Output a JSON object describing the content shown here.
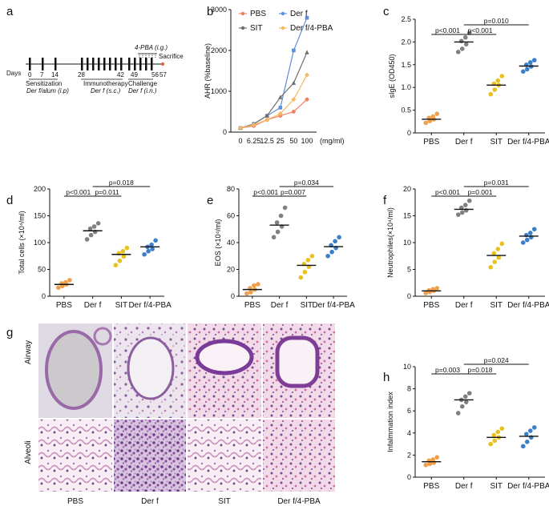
{
  "panels": {
    "a": {
      "letter": "a",
      "days_label": "Days",
      "day_ticks": [
        "0",
        "7",
        "14",
        "28",
        "42",
        "49",
        "56",
        "57"
      ],
      "treatment_label": "4-PBA (i.g.)",
      "sacrifice_label": "Sacrifice",
      "phases": [
        {
          "name": "Sensitization",
          "detail": "Der f/alum (i.p)"
        },
        {
          "name": "Immunotherapy",
          "detail": "Der f (s.c.)"
        },
        {
          "name": "Challenge",
          "detail": "Der f (i.n.)"
        }
      ]
    },
    "g": {
      "letter": "g",
      "row_labels": [
        "Airway",
        "Alveoli"
      ],
      "column_labels": [
        "PBS",
        "Der f",
        "SIT",
        "Der f/4-PBA"
      ]
    }
  },
  "colors": {
    "PBS": "#f0a04b",
    "Der f": "#808080",
    "SIT": "#e8c020",
    "Der f/4-PBA": "#3a7fc8",
    "AHR_PBS": "#f08060",
    "AHR_Der f": "#5b8fd8",
    "AHR_SIT": "#707070",
    "AHR_Der f/4-PBA": "#f6b860"
  },
  "chart_data": [
    {
      "id": "b",
      "letter": "b",
      "type": "line",
      "xlabel": "(mg/ml)",
      "ylabel": "AHR (%baseline)",
      "x": [
        "0",
        "6.25",
        "12.5",
        "25",
        "50",
        "100"
      ],
      "xticks": [
        "0",
        "6.25",
        "12.5",
        "25",
        "50",
        "100"
      ],
      "ylim": [
        0,
        3000
      ],
      "yticks": [
        "0",
        "1000",
        "2000",
        "3000"
      ],
      "legend": "top",
      "series": [
        {
          "name": "PBS",
          "values": [
            100,
            150,
            300,
            400,
            500,
            800
          ]
        },
        {
          "name": "Der f",
          "values": [
            100,
            200,
            400,
            600,
            2000,
            2800
          ]
        },
        {
          "name": "SIT",
          "values": [
            100,
            200,
            400,
            850,
            1200,
            1950
          ]
        },
        {
          "name": "Der f/4-PBA",
          "values": [
            100,
            180,
            300,
            450,
            800,
            1400
          ]
        }
      ]
    },
    {
      "id": "c",
      "letter": "c",
      "type": "scatter",
      "ylabel": "sIgE (OD450)",
      "categories": [
        "PBS",
        "Der f",
        "SIT",
        "Der f/4-PBA"
      ],
      "ylim": [
        0,
        2.5
      ],
      "yticks": [
        "0",
        "0.5",
        "1.0",
        "1.5",
        "2.0",
        "2.5"
      ],
      "means": [
        0.3,
        2.0,
        1.05,
        1.47
      ],
      "points": [
        [
          0.22,
          0.26,
          0.3,
          0.33,
          0.36,
          0.42
        ],
        [
          1.78,
          1.85,
          1.95,
          2.02,
          2.1,
          2.2
        ],
        [
          0.85,
          0.95,
          1.05,
          1.08,
          1.15,
          1.25
        ],
        [
          1.35,
          1.4,
          1.46,
          1.5,
          1.55,
          1.6
        ]
      ],
      "pvalues": [
        {
          "label": "p<0.001",
          "from": 0,
          "to": 1,
          "level": 0
        },
        {
          "label": "p<0.001",
          "from": 1,
          "to": 2,
          "level": 0
        },
        {
          "label": "p=0.010",
          "from": 1,
          "to": 3,
          "level": 1
        }
      ]
    },
    {
      "id": "d",
      "letter": "d",
      "type": "scatter",
      "ylabel": "Total cells (×10⁴/ml)",
      "categories": [
        "PBS",
        "Der f",
        "SIT",
        "Der f/4-PBA"
      ],
      "ylim": [
        0,
        200
      ],
      "yticks": [
        "0",
        "50",
        "100",
        "150",
        "200"
      ],
      "means": [
        22,
        122,
        78,
        92
      ],
      "points": [
        [
          16,
          19,
          22,
          24,
          26,
          30
        ],
        [
          106,
          114,
          120,
          126,
          130,
          136
        ],
        [
          58,
          66,
          74,
          80,
          84,
          90
        ],
        [
          78,
          84,
          88,
          92,
          96,
          104
        ]
      ],
      "pvalues": [
        {
          "label": "p<0.001",
          "from": 0,
          "to": 1,
          "level": 0
        },
        {
          "label": "p=0.011",
          "from": 1,
          "to": 2,
          "level": 0
        },
        {
          "label": "p=0.018",
          "from": 1,
          "to": 3,
          "level": 1
        }
      ]
    },
    {
      "id": "e",
      "letter": "e",
      "type": "scatter",
      "ylabel": "EOS (×10⁴/ml)",
      "categories": [
        "PBS",
        "Der f",
        "SIT",
        "Der f/4-PBA"
      ],
      "ylim": [
        0,
        80
      ],
      "yticks": [
        "0",
        "20",
        "40",
        "60",
        "80"
      ],
      "means": [
        5,
        53,
        23,
        37
      ],
      "points": [
        [
          2,
          3,
          5,
          6,
          8,
          9
        ],
        [
          44,
          48,
          52,
          55,
          60,
          66
        ],
        [
          14,
          18,
          22,
          24,
          27,
          30
        ],
        [
          30,
          33,
          36,
          38,
          41,
          44
        ]
      ],
      "pvalues": [
        {
          "label": "p<0.001",
          "from": 0,
          "to": 1,
          "level": 0
        },
        {
          "label": "p=0.007",
          "from": 1,
          "to": 2,
          "level": 0
        },
        {
          "label": "p=0.034",
          "from": 1,
          "to": 3,
          "level": 1
        }
      ]
    },
    {
      "id": "f",
      "letter": "f",
      "type": "scatter",
      "ylabel": "Neutrophiles(×10⁴/ml)",
      "categories": [
        "PBS",
        "Der f",
        "SIT",
        "Der f/4-PBA"
      ],
      "ylim": [
        0,
        20
      ],
      "yticks": [
        "0",
        "5",
        "10",
        "15",
        "20"
      ],
      "means": [
        1.0,
        16.2,
        7.6,
        11.2
      ],
      "points": [
        [
          0.6,
          0.8,
          1.0,
          1.1,
          1.3,
          1.5
        ],
        [
          15.2,
          15.6,
          16.0,
          16.5,
          17.0,
          17.8
        ],
        [
          5.4,
          6.4,
          7.2,
          8.0,
          8.8,
          9.8
        ],
        [
          10.0,
          10.5,
          11.0,
          11.4,
          11.8,
          12.5
        ]
      ],
      "pvalues": [
        {
          "label": "p<0.001",
          "from": 0,
          "to": 1,
          "level": 0
        },
        {
          "label": "p=0.001",
          "from": 1,
          "to": 2,
          "level": 0
        },
        {
          "label": "p=0.031",
          "from": 1,
          "to": 3,
          "level": 1
        }
      ]
    },
    {
      "id": "h",
      "letter": "h",
      "type": "scatter",
      "ylabel": "Infalmmation index",
      "categories": [
        "PBS",
        "Der f",
        "SIT",
        "Der f/4-PBA"
      ],
      "ylim": [
        0,
        10
      ],
      "yticks": [
        "0",
        "2",
        "4",
        "6",
        "8",
        "10"
      ],
      "means": [
        1.4,
        7.0,
        3.6,
        3.7
      ],
      "points": [
        [
          1.1,
          1.2,
          1.3,
          1.5,
          1.6,
          1.8
        ],
        [
          5.8,
          6.4,
          6.8,
          7.0,
          7.3,
          7.6
        ],
        [
          3.0,
          3.3,
          3.6,
          3.8,
          4.1,
          4.4
        ],
        [
          2.8,
          3.2,
          3.6,
          3.9,
          4.2,
          4.5
        ]
      ],
      "pvalues": [
        {
          "label": "p=0.003",
          "from": 0,
          "to": 1,
          "level": 0
        },
        {
          "label": "p=0.018",
          "from": 1,
          "to": 2,
          "level": 0
        },
        {
          "label": "p=0.024",
          "from": 1,
          "to": 3,
          "level": 1
        }
      ]
    }
  ]
}
